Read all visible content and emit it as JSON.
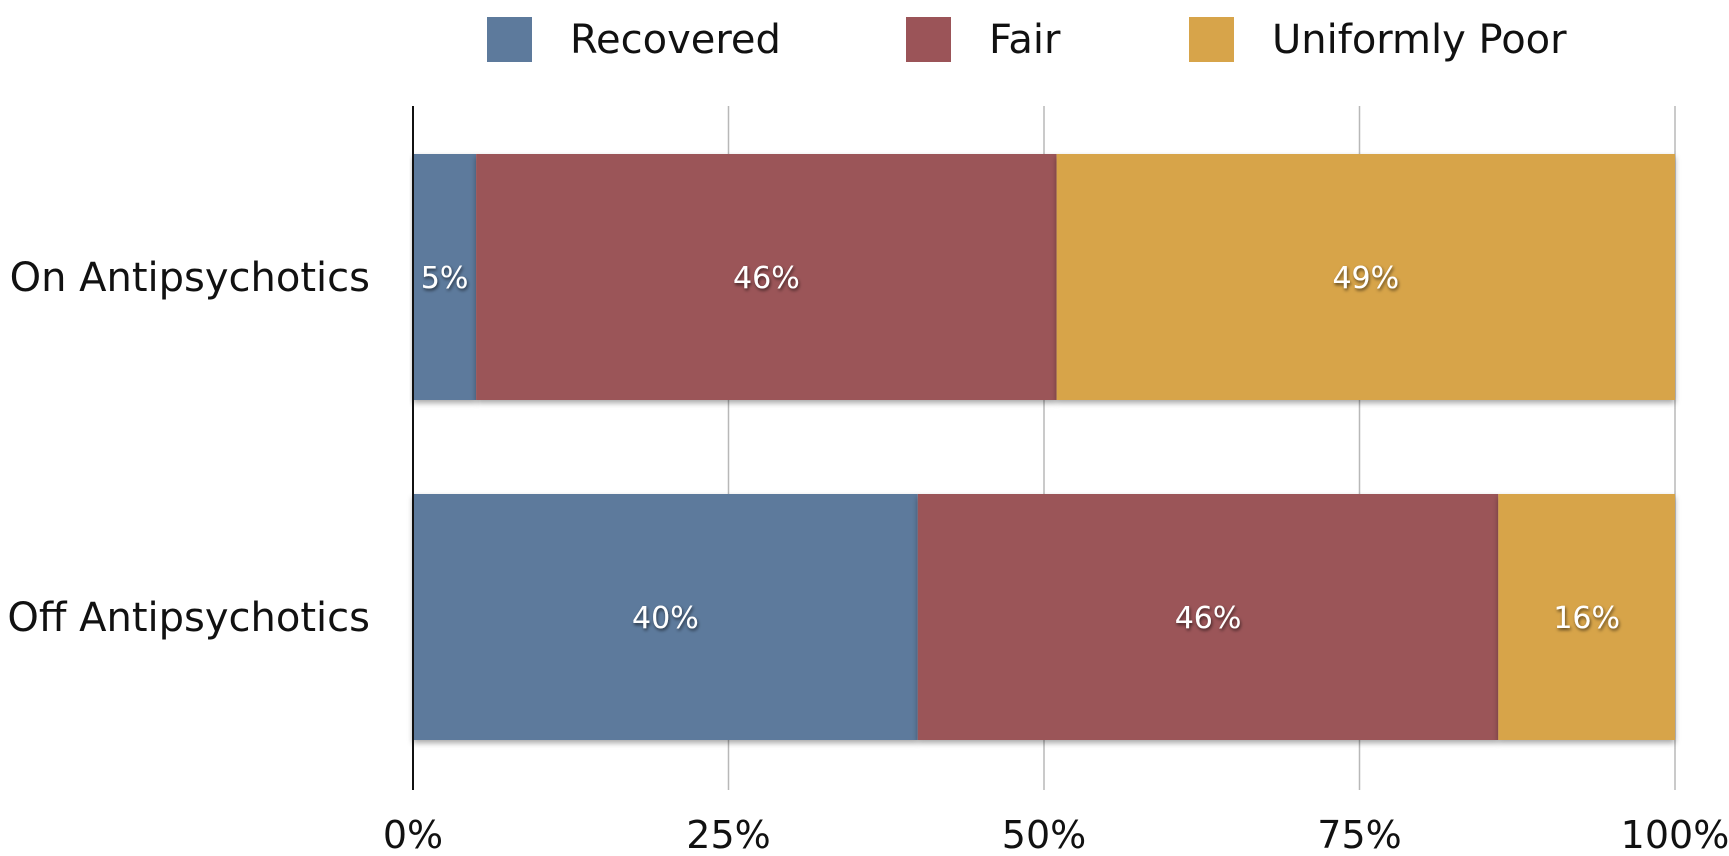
{
  "chart_data": {
    "type": "bar",
    "orientation": "horizontal",
    "stacked": true,
    "categories": [
      "On Antipsychotics",
      "Off Antipsychotics"
    ],
    "series": [
      {
        "name": "Recovered",
        "color": "#5d7a9c",
        "values": [
          5,
          40
        ],
        "labels": [
          "5%",
          "40%"
        ]
      },
      {
        "name": "Fair",
        "color": "#9b5458",
        "values": [
          46,
          46
        ],
        "labels": [
          "46%",
          "46%"
        ]
      },
      {
        "name": "Uniformly Poor",
        "color": "#d7a44a",
        "values": [
          49,
          16
        ],
        "labels": [
          "49%",
          "16%"
        ]
      }
    ],
    "xlim": [
      0,
      100
    ],
    "xticks": [
      0,
      25,
      50,
      75,
      100
    ],
    "xtick_labels": [
      "0%",
      "25%",
      "50%",
      "75%",
      "100%"
    ],
    "grid": true,
    "legend_position": "top"
  }
}
